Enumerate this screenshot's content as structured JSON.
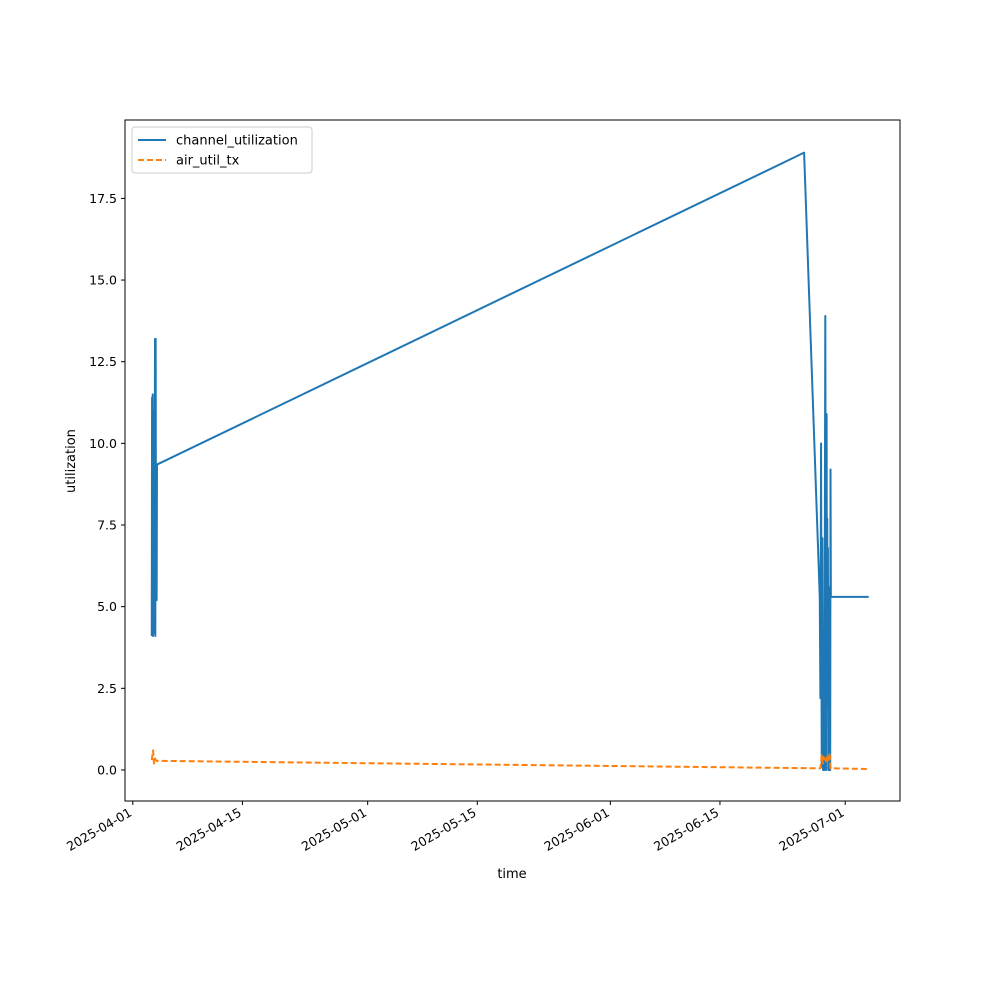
{
  "chart_data": {
    "type": "line",
    "title": "",
    "xlabel": "time",
    "ylabel": "utilization",
    "xlim": [
      "2025-03-31",
      "2025-07-08"
    ],
    "ylim": [
      -0.95,
      19.9
    ],
    "x_ticks": [
      "2025-04-01",
      "2025-04-15",
      "2025-05-01",
      "2025-05-15",
      "2025-06-01",
      "2025-06-15",
      "2025-07-01"
    ],
    "y_ticks": [
      0.0,
      2.5,
      5.0,
      7.5,
      10.0,
      12.5,
      15.0,
      17.5
    ],
    "grid": false,
    "legend_position": "upper left",
    "series": [
      {
        "name": "channel_utilization",
        "color": "#1f77b4",
        "style": "solid",
        "points": [
          [
            "2025-04-03T10:00",
            4.1
          ],
          [
            "2025-04-03T11:00",
            11.4
          ],
          [
            "2025-04-03T12:00",
            4.2
          ],
          [
            "2025-04-03T13:00",
            11.5
          ],
          [
            "2025-04-03T14:00",
            4.1
          ],
          [
            "2025-04-03T15:00",
            9.0
          ],
          [
            "2025-04-03T16:00",
            4.3
          ],
          [
            "2025-04-03T17:00",
            11.0
          ],
          [
            "2025-04-03T18:00",
            4.2
          ],
          [
            "2025-04-03T20:00",
            13.2
          ],
          [
            "2025-04-03T21:00",
            4.1
          ],
          [
            "2025-04-03T22:00",
            13.2
          ],
          [
            "2025-04-03T23:00",
            5.2
          ],
          [
            "2025-04-04T00:00",
            6.1
          ],
          [
            "2025-04-04T01:00",
            5.2
          ],
          [
            "2025-04-04T02:00",
            9.35
          ],
          [
            "2025-06-25T18:00",
            18.9
          ],
          [
            "2025-06-27T18:00",
            5.3
          ],
          [
            "2025-06-27T20:00",
            2.2
          ],
          [
            "2025-06-27T22:00",
            10.0
          ],
          [
            "2025-06-28T00:00",
            0.1
          ],
          [
            "2025-06-28T02:00",
            7.1
          ],
          [
            "2025-06-28T04:00",
            0.0
          ],
          [
            "2025-06-28T06:00",
            1.8
          ],
          [
            "2025-06-28T08:00",
            0.0
          ],
          [
            "2025-06-28T11:00",
            13.9
          ],
          [
            "2025-06-28T13:00",
            0.0
          ],
          [
            "2025-06-28T15:00",
            10.9
          ],
          [
            "2025-06-28T16:00",
            2.0
          ],
          [
            "2025-06-28T17:00",
            7.7
          ],
          [
            "2025-06-28T18:00",
            2.0
          ],
          [
            "2025-06-28T19:00",
            6.8
          ],
          [
            "2025-06-28T20:00",
            0.0
          ],
          [
            "2025-06-28T21:00",
            5.6
          ],
          [
            "2025-06-28T22:00",
            0.0
          ],
          [
            "2025-06-28T23:00",
            4.2
          ],
          [
            "2025-06-29T00:00",
            0.0
          ],
          [
            "2025-06-29T01:00",
            4.5
          ],
          [
            "2025-06-29T02:00",
            0.0
          ],
          [
            "2025-06-29T03:00",
            9.2
          ],
          [
            "2025-06-29T04:00",
            5.3
          ],
          [
            "2025-07-04T00:00",
            5.3
          ]
        ]
      },
      {
        "name": "air_util_tx",
        "color": "#ff7f0e",
        "style": "dashed",
        "points": [
          [
            "2025-04-03T10:00",
            0.3
          ],
          [
            "2025-04-03T14:00",
            0.6
          ],
          [
            "2025-04-03T17:00",
            0.2
          ],
          [
            "2025-04-03T20:00",
            0.35
          ],
          [
            "2025-04-04T00:00",
            0.28
          ],
          [
            "2025-06-27T20:00",
            0.05
          ],
          [
            "2025-06-28T00:00",
            0.45
          ],
          [
            "2025-06-28T03:00",
            0.2
          ],
          [
            "2025-06-28T06:00",
            0.4
          ],
          [
            "2025-06-28T09:00",
            0.25
          ],
          [
            "2025-06-28T12:00",
            0.35
          ],
          [
            "2025-06-28T15:00",
            0.2
          ],
          [
            "2025-06-28T18:00",
            0.45
          ],
          [
            "2025-06-28T21:00",
            0.3
          ],
          [
            "2025-06-29T00:00",
            0.5
          ],
          [
            "2025-06-29T03:00",
            0.05
          ],
          [
            "2025-07-04T00:00",
            0.03
          ]
        ]
      }
    ]
  }
}
